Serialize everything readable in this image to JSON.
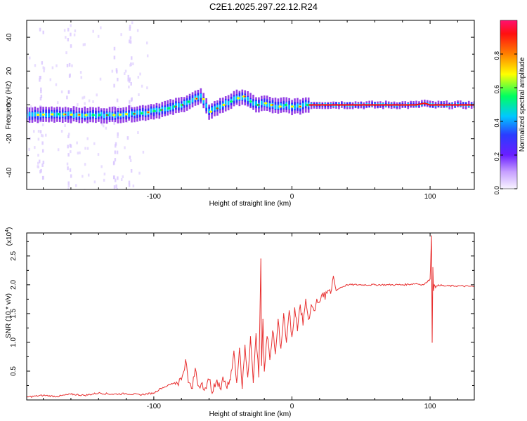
{
  "title": "C2E1.2025.297.22.12.R24",
  "chart_data": [
    {
      "type": "heatmap",
      "name": "spectrogram",
      "xlabel": "Height of straight line (km)",
      "ylabel": "Frequency (Hz)",
      "xlim": [
        -192,
        132
      ],
      "ylim": [
        -50,
        50
      ],
      "xticks": [
        -100,
        0,
        100
      ],
      "xtick_labels": [
        "-100",
        "0",
        "100"
      ],
      "yticks": [
        -40,
        -20,
        0,
        20,
        40
      ],
      "ytick_labels": [
        "-40",
        "-20",
        "0",
        "20",
        "40"
      ],
      "ridge": {
        "x": [
          -192,
          -170,
          -150,
          -130,
          -110,
          -95,
          -80,
          -72,
          -66,
          -60,
          -55,
          -50,
          -45,
          -40,
          -35,
          -30,
          -25,
          -20,
          -15,
          -10,
          -5,
          0,
          5,
          10,
          15,
          30,
          60,
          90,
          96,
          100,
          132
        ],
        "y": [
          -6,
          -5.5,
          -6,
          -6,
          -5,
          -3,
          0,
          3,
          5,
          -4,
          -2,
          0,
          2,
          4,
          5,
          2,
          0,
          1,
          0,
          -1,
          0,
          -1,
          -1,
          0,
          0,
          0,
          0,
          0,
          1,
          0,
          0
        ]
      },
      "colorbar": {
        "label": "Normalized spectral amplitude",
        "ticks": [
          0.0,
          0.2,
          0.4,
          0.6,
          0.8
        ],
        "tick_labels": [
          "0.0",
          "0.2",
          "0.4",
          "0.6",
          "0.8"
        ],
        "range": [
          0,
          1
        ],
        "colors": [
          "#f8f4ff",
          "#8a2be2",
          "#2a2aff",
          "#00c8ff",
          "#00ff60",
          "#ffff00",
          "#ff8000",
          "#ff1010",
          "#ff1070"
        ]
      }
    },
    {
      "type": "line",
      "name": "snr",
      "xlabel": "Height of straight line (km)",
      "ylabel": "SNR (10 * v/v)",
      "y_multiplier": "(x10",
      "y_multiplier_exp": "4",
      "y_multiplier_close": ")",
      "xlim": [
        -192,
        132
      ],
      "ylim": [
        0,
        2.9
      ],
      "xticks": [
        -100,
        0,
        100
      ],
      "xtick_labels": [
        "-100",
        "0",
        "100"
      ],
      "yticks": [
        0.5,
        1.0,
        1.5,
        2.0,
        2.5
      ],
      "ytick_labels": [
        "0.5",
        "1.0",
        "1.5",
        "2.0",
        "2.5"
      ],
      "color": "#e83030",
      "series": [
        {
          "name": "SNR",
          "x": [
            -192,
            -180,
            -170,
            -160,
            -150,
            -140,
            -130,
            -120,
            -110,
            -100,
            -95,
            -90,
            -85,
            -80,
            -77,
            -75,
            -72,
            -70,
            -68,
            -65,
            -62,
            -60,
            -57,
            -55,
            -52,
            -50,
            -47,
            -45,
            -44,
            -42,
            -40,
            -38,
            -36,
            -34,
            -32,
            -30,
            -28,
            -26,
            -24,
            -22.5,
            -22,
            -21,
            -20,
            -18,
            -16,
            -14,
            -12,
            -10,
            -8,
            -6,
            -4,
            -2,
            0,
            2,
            4,
            6,
            8,
            10,
            12,
            14,
            16,
            18,
            20,
            22,
            24,
            26,
            28,
            30,
            32,
            35,
            40,
            50,
            60,
            70,
            80,
            90,
            95,
            98,
            100,
            101,
            101.5,
            102,
            102.5,
            103,
            104,
            106,
            110,
            120,
            132
          ],
          "y": [
            0.05,
            0.08,
            0.06,
            0.1,
            0.08,
            0.12,
            0.1,
            0.11,
            0.09,
            0.12,
            0.2,
            0.25,
            0.3,
            0.35,
            0.7,
            0.3,
            0.2,
            0.55,
            0.25,
            0.3,
            0.2,
            0.35,
            0.15,
            0.3,
            0.2,
            0.4,
            0.2,
            0.35,
            0.5,
            0.85,
            0.3,
            0.9,
            0.2,
            0.95,
            0.4,
            1.1,
            0.3,
            1.15,
            0.4,
            2.45,
            0.6,
            1.4,
            0.5,
            1.1,
            0.7,
            1.2,
            0.8,
            1.4,
            0.9,
            1.5,
            1.0,
            1.55,
            1.1,
            1.6,
            1.2,
            1.65,
            1.3,
            1.75,
            1.4,
            1.65,
            1.55,
            1.75,
            1.7,
            1.85,
            1.75,
            1.9,
            1.85,
            2.15,
            1.9,
            1.95,
            2.0,
            2.0,
            2.0,
            2.0,
            2.0,
            2.02,
            2.0,
            2.05,
            2.1,
            2.85,
            1.0,
            2.3,
            1.9,
            2.0,
            1.95,
            2.0,
            1.98,
            1.98,
            1.97
          ]
        }
      ]
    }
  ]
}
